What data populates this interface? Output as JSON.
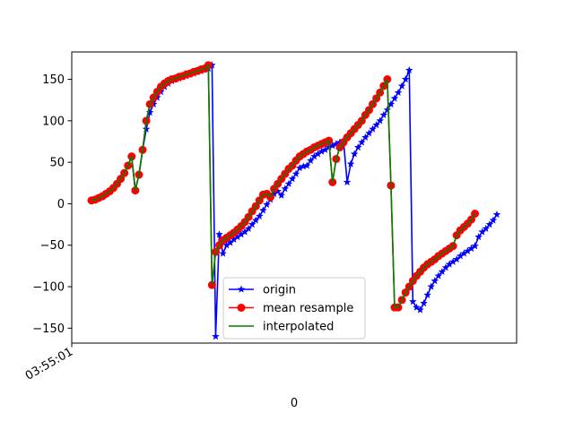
{
  "chart_data": {
    "type": "line",
    "title": "",
    "xlabel": "0",
    "ylabel": "",
    "x_tick_label": "03:55:01",
    "y_ticks": [
      -150,
      -100,
      -50,
      0,
      50,
      100,
      150
    ],
    "ylim": [
      -168,
      183
    ],
    "grid": false,
    "legend_position": "lower-center",
    "series": [
      {
        "name": "origin",
        "color": "#0000ff",
        "marker": "star",
        "values": [
          4,
          5,
          7,
          9,
          12,
          15,
          19,
          24,
          30,
          37,
          46,
          56,
          17,
          35,
          65,
          90,
          110,
          120,
          128,
          135,
          141,
          145,
          148,
          150,
          151,
          153,
          154,
          156,
          157,
          159,
          160,
          162,
          163,
          167,
          -160,
          -37,
          -60,
          -50,
          -47,
          -43,
          -40,
          -37,
          -34,
          -30,
          -25,
          -20,
          -15,
          -8,
          -1,
          5,
          12,
          15,
          10,
          18,
          24,
          30,
          36,
          43,
          45,
          46,
          52,
          57,
          60,
          63,
          65,
          68,
          70,
          72,
          74,
          76,
          26,
          48,
          60,
          68,
          74,
          80,
          85,
          90,
          95,
          100,
          107,
          113,
          120,
          127,
          134,
          142,
          150,
          161,
          -118,
          -125,
          -128,
          -120,
          -110,
          -100,
          -93,
          -87,
          -82,
          -77,
          -73,
          -70,
          -67,
          -63,
          -60,
          -57,
          -54,
          -51,
          -40,
          -34,
          -30,
          -25,
          -20,
          -13
        ]
      },
      {
        "name": "mean resample",
        "color": "#ff0000",
        "marker": "circle",
        "values": [
          4,
          5,
          7,
          9,
          12,
          15,
          19,
          24,
          30,
          37,
          46,
          57,
          16,
          35,
          65,
          100,
          120,
          128,
          135,
          141,
          145,
          148,
          150,
          151,
          153,
          154,
          156,
          157,
          159,
          160,
          162,
          163,
          167,
          -98,
          -58,
          -50,
          -44,
          -41,
          -38,
          -35,
          -31,
          -27,
          -22,
          -16,
          -9,
          -3,
          4,
          11,
          12,
          8,
          18,
          24,
          30,
          36,
          42,
          46,
          52,
          57,
          60,
          63,
          65,
          68,
          70,
          72,
          74,
          76,
          26,
          54,
          68,
          74,
          80,
          85,
          90,
          95,
          100,
          107,
          113,
          120,
          127,
          134,
          142,
          150,
          22,
          -125,
          -125,
          -116,
          -107,
          -100,
          -93,
          -87,
          -82,
          -77,
          -73,
          -70,
          -67,
          -63,
          -60,
          -57,
          -54,
          -51,
          -38,
          -32,
          -28,
          -24,
          -19,
          -12
        ]
      },
      {
        "name": "interpolated",
        "color": "#008000",
        "marker": "none",
        "values": [
          4,
          5,
          7,
          9,
          12,
          15,
          19,
          24,
          30,
          37,
          46,
          57,
          16,
          35,
          65,
          100,
          120,
          128,
          135,
          141,
          145,
          148,
          150,
          151,
          153,
          154,
          156,
          157,
          159,
          160,
          162,
          163,
          167,
          -98,
          -58,
          -50,
          -44,
          -41,
          -38,
          -35,
          -31,
          -27,
          -22,
          -16,
          -9,
          -3,
          4,
          11,
          12,
          8,
          18,
          24,
          30,
          36,
          42,
          46,
          52,
          57,
          60,
          63,
          65,
          68,
          70,
          72,
          74,
          76,
          26,
          54,
          68,
          74,
          80,
          85,
          90,
          95,
          100,
          107,
          113,
          120,
          127,
          134,
          142,
          150,
          22,
          -125,
          -125,
          -116,
          -107,
          -100,
          -93,
          -87,
          -82,
          -77,
          -73,
          -70,
          -67,
          -63,
          -60,
          -57,
          -54,
          -51,
          -38,
          -32,
          -28,
          -24,
          -19,
          -12
        ]
      }
    ]
  }
}
